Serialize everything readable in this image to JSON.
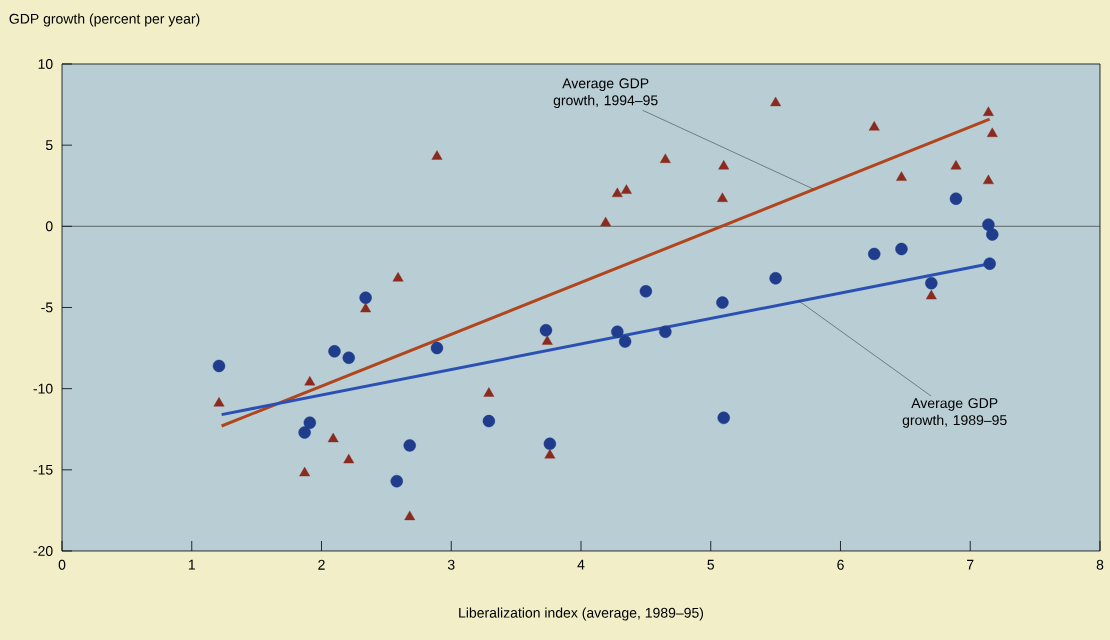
{
  "chart_data": {
    "type": "scatter",
    "xlabel": "Liberalization index (average, 1989–95)",
    "ylabel": "GDP growth (percent per year)",
    "xlim": [
      0,
      8
    ],
    "ylim": [
      -20,
      10
    ],
    "xticks": [
      0,
      1,
      2,
      3,
      4,
      5,
      6,
      7,
      8
    ],
    "yticks": [
      -20,
      -15,
      -10,
      -5,
      0,
      5,
      10
    ],
    "ref_lines": [
      {
        "axis": "y",
        "value": 0,
        "color": "#222222"
      }
    ],
    "series": [
      {
        "marker": "triangle",
        "color": "#8b2a1e",
        "x": [
          2.89,
          2.59,
          2.34,
          1.91,
          1.21,
          3.29,
          2.09,
          2.21,
          1.87,
          2.68,
          3.76,
          3.74,
          4.19,
          4.28,
          4.35,
          4.65,
          5.1,
          5.09,
          5.5,
          6.26,
          6.47,
          6.89,
          6.7,
          7.14,
          7.17,
          7.14
        ],
        "values": [
          4.3,
          -3.2,
          -5.1,
          -9.6,
          -10.9,
          -10.3,
          -13.1,
          -14.4,
          -15.2,
          -17.9,
          -14.1,
          -7.1,
          0.2,
          2.0,
          2.2,
          4.1,
          3.7,
          1.7,
          7.6,
          6.1,
          3.0,
          3.7,
          -4.3,
          7.0,
          5.7,
          2.8
        ]
      },
      {
        "marker": "circle",
        "color": "#1f3d8c",
        "x": [
          1.21,
          2.1,
          2.21,
          2.34,
          2.89,
          3.73,
          1.91,
          1.87,
          2.68,
          2.58,
          3.29,
          3.76,
          4.5,
          5.09,
          5.5,
          4.28,
          4.34,
          4.65,
          5.1,
          6.26,
          6.47,
          6.89,
          7.14,
          7.17,
          7.15,
          6.7
        ],
        "values": [
          -8.6,
          -7.7,
          -8.1,
          -4.4,
          -7.5,
          -6.4,
          -12.1,
          -12.7,
          -13.5,
          -15.7,
          -12.0,
          -13.4,
          -4.0,
          -4.7,
          -3.2,
          -6.5,
          -7.1,
          -6.5,
          -11.8,
          -1.7,
          -1.4,
          1.7,
          0.1,
          -0.5,
          -2.3,
          -3.5
        ]
      },
      {
        "type": "line",
        "marker": "none",
        "line_style": "solid",
        "color": "#b0461e",
        "x": [
          1.23,
          7.15
        ],
        "values": [
          -12.3,
          6.6
        ]
      },
      {
        "type": "line",
        "marker": "none",
        "line_style": "solid",
        "color": "#2b50b4",
        "x": [
          1.23,
          7.15
        ],
        "values": [
          -11.6,
          -2.3
        ]
      }
    ],
    "annotations": [
      {
        "text": "Average GDP growth, 1994–95",
        "x": 5.79,
        "y": 2.3
      },
      {
        "text": "Average GDP growth, 1989–95",
        "x": 5.68,
        "y": -4.6
      }
    ]
  }
}
